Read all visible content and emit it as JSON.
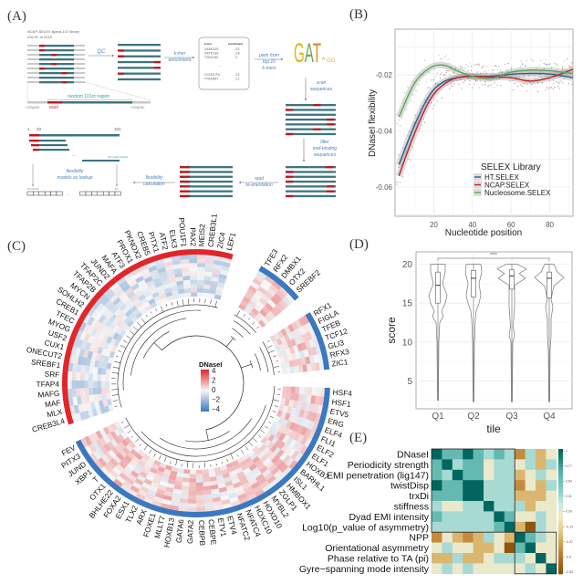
{
  "panels": {
    "a": "(A)",
    "b": "(B)",
    "c": "(C)",
    "d": "(D)",
    "e": "(E)"
  },
  "panel_a": {
    "caption_line1": "NCAP-SELEX ligand-147 library",
    "caption_line2": "Zhu et. al 2018",
    "qc": "QC",
    "kmer_step": [
      "k-mer",
      "enrichment"
    ],
    "kmer_table": {
      "headers": [
        "k-mer",
        "enrichment"
      ],
      "rows": [
        [
          "GATACGG",
          "3.2"
        ],
        [
          "GATTCGG",
          "2.8"
        ],
        [
          "TGGCGAT",
          "3"
        ],
        [
          "...",
          ""
        ],
        [
          "CGTATCTG",
          "2.3"
        ],
        [
          "TTCATATT",
          "1.1"
        ]
      ]
    },
    "pwm_step": [
      "pwm from",
      "top 10",
      "k-mers"
    ],
    "logo": "GAT",
    "scan_step": [
      "scan",
      "sequences"
    ],
    "filter_step": [
      "filter",
      "end-binding",
      "sequences"
    ],
    "reorient_step": [
      "read",
      "re-orientation"
    ],
    "flex_calc_step": [
      "flexibility",
      "calculation"
    ],
    "random_region": "random 101nt region",
    "adapter_left": "Adapter",
    "motif": "Motif",
    "adapter_right": "Adapter",
    "pos_1": "1",
    "pos_10": "10",
    "pos_101": "101",
    "ellipsis": "...",
    "window_label": "(N-n+1)th window",
    "lookup_step": [
      "flexibility",
      "models as lookup"
    ],
    "f_labels": "F1 F2 F3",
    "fn_label": "Fn",
    "colors": {
      "teal": "#3d7480",
      "red": "#c0171c",
      "gray": "#c8c8c8"
    }
  },
  "chart_data": [
    {
      "id": "B",
      "type": "line",
      "xlabel": "Nucleotide position",
      "ylabel": "DNaseI flexibility",
      "xlim": [
        0,
        92
      ],
      "ylim": [
        -0.0704,
        -0.0037
      ],
      "xticks": [
        "20",
        "40",
        "60",
        "80"
      ],
      "xtick_values": [
        20,
        40,
        60,
        80
      ],
      "yticks": [
        "-0.02",
        "-0.04",
        "-0.06"
      ],
      "ytick_values": [
        -0.02,
        -0.04,
        -0.06
      ],
      "grid": true,
      "legend": {
        "title": "SELEX Library",
        "placement": "bottom-right"
      },
      "series": [
        {
          "name": "HT.SELEX",
          "color": "#2f5f8f",
          "x": [
            2,
            10,
            18,
            25,
            32,
            40,
            50,
            60,
            70,
            80,
            92
          ],
          "y": [
            -0.052,
            -0.038,
            -0.027,
            -0.0225,
            -0.021,
            -0.0205,
            -0.0205,
            -0.0198,
            -0.0195,
            -0.0197,
            -0.021
          ]
        },
        {
          "name": "NCAP.SELEX",
          "color": "#c8202a",
          "x": [
            2,
            10,
            18,
            25,
            32,
            40,
            50,
            60,
            70,
            80,
            92
          ],
          "y": [
            -0.056,
            -0.041,
            -0.029,
            -0.0235,
            -0.021,
            -0.0205,
            -0.0207,
            -0.021,
            -0.0222,
            -0.021,
            -0.018
          ]
        },
        {
          "name": "Nucleosome.SELEX",
          "color": "#5aa55a",
          "x": [
            2,
            10,
            18,
            25,
            32,
            40,
            50,
            60,
            70,
            80,
            92
          ],
          "y": [
            -0.035,
            -0.023,
            -0.0175,
            -0.0165,
            -0.0185,
            -0.0205,
            -0.0212,
            -0.019,
            -0.0183,
            -0.0185,
            -0.0195
          ]
        }
      ]
    },
    {
      "id": "D",
      "type": "violin",
      "xlabel": "tile",
      "ylabel": "score",
      "categories": [
        "Q1",
        "Q2",
        "Q3",
        "Q4"
      ],
      "ylim": [
        1.4,
        21.6
      ],
      "yticks": [
        "5",
        "10",
        "15",
        "20"
      ],
      "ytick_values": [
        5,
        10,
        15,
        20
      ],
      "grid": true,
      "significance": {
        "from": "Q1",
        "to": "Q4",
        "label": "****"
      },
      "boxes": [
        {
          "min": 2.5,
          "q1": 15.0,
          "median": 17.3,
          "q3": 19.0,
          "max": 20
        },
        {
          "min": 2.3,
          "q1": 15.8,
          "median": 18.2,
          "q3": 19.2,
          "max": 20
        },
        {
          "min": 2.3,
          "q1": 16.8,
          "median": 18.5,
          "q3": 19.3,
          "max": 20
        },
        {
          "min": 2.3,
          "q1": 15.7,
          "median": 18.2,
          "q3": 19.0,
          "max": 20
        }
      ]
    },
    {
      "id": "E",
      "type": "heatmap",
      "rows": [
        "DNaseI",
        "Periodicity strength",
        "EMI penetration (lig147)",
        "twistDisp",
        "trxDi",
        "stiffness",
        "Dyad EMI intensity",
        "Log10(p_value of asymmetry)",
        "NPP",
        "Orientational asymmetry",
        "Phase relative to TA (pi)",
        "Gyre−spanning mode intensity"
      ],
      "colorbar_ticks": [
        "1",
        "0.77",
        "0.54",
        "0.31",
        "0.09",
        "-0.14",
        "-0.37",
        "-0.6",
        "-0.83"
      ],
      "range": [
        -0.83,
        1
      ],
      "clusters": [
        [
          0,
          7
        ],
        [
          8,
          11
        ]
      ],
      "values": [
        [
          1,
          0.6,
          0.6,
          1,
          0.6,
          0.3,
          0.6,
          0.3,
          -0.5,
          0.3,
          -0.3,
          0.05
        ],
        [
          0.6,
          1,
          0.3,
          0.6,
          0.6,
          0.05,
          0.3,
          0.3,
          0.05,
          0.3,
          -0.3,
          0.3
        ],
        [
          0.6,
          0.3,
          1,
          0.6,
          0.6,
          0.05,
          0.3,
          0.3,
          -0.3,
          0.05,
          0.3,
          0.05
        ],
        [
          1,
          0.6,
          0.6,
          1,
          1,
          0.3,
          0.3,
          0.3,
          -0.5,
          0.05,
          -0.3,
          0.3
        ],
        [
          0.6,
          0.6,
          0.6,
          1,
          1,
          0.3,
          0.3,
          0.3,
          -0.3,
          -0.3,
          -0.3,
          0.05
        ],
        [
          0.3,
          0.05,
          0.05,
          0.3,
          0.3,
          1,
          0.3,
          0.3,
          0.3,
          -0.3,
          0.05,
          0.05
        ],
        [
          0.6,
          0.3,
          0.3,
          0.3,
          0.3,
          0.3,
          1,
          0.6,
          0.05,
          0.05,
          0.3,
          0.05
        ],
        [
          0.3,
          0.3,
          0.3,
          0.3,
          0.3,
          0.3,
          0.6,
          1,
          -0.3,
          -0.8,
          0.3,
          0.05
        ],
        [
          -0.5,
          0.05,
          -0.3,
          -0.5,
          -0.3,
          0.3,
          0.05,
          -0.3,
          1,
          0.6,
          0.3,
          0.05
        ],
        [
          0.05,
          0.3,
          0.05,
          0.05,
          -0.3,
          -0.3,
          0.05,
          -0.8,
          0.6,
          1,
          0.05,
          0.05
        ],
        [
          -0.3,
          -0.3,
          0.3,
          -0.3,
          -0.3,
          0.05,
          0.3,
          0.3,
          0.3,
          0.05,
          1,
          0.05
        ],
        [
          0.05,
          0.3,
          0.05,
          0.3,
          0.05,
          0.05,
          0.05,
          0.05,
          0.05,
          0.3,
          0.05,
          1
        ]
      ]
    }
  ],
  "panel_c": {
    "legend_title": "DNaseI",
    "legend_ticks": [
      "4",
      "2",
      "0",
      "−2",
      "−4"
    ],
    "colors": {
      "high": "#e0262b",
      "low": "#3a78c0"
    },
    "clusters": [
      {
        "ring": "red",
        "labels": [
          "CREB3L4",
          "MLX",
          "MAF",
          "MAFG",
          "TFAP4",
          "SRF",
          "SREBF1",
          "ONECUT2",
          "CUX1",
          "USF2",
          "MYOG",
          "TFEC",
          "CREB1",
          "SOHLH2",
          "MYCN",
          "TFAP2B",
          "TFAP2C",
          "JUND2",
          "MAFA",
          "ATF3",
          "PROX1",
          "PKNOX2",
          "CREB5",
          "PITX1",
          "ATF2",
          "ELK3",
          "POU1F1",
          "PAX2",
          "MEIS2",
          "CREB3L1",
          "ZIC4",
          "LEF1"
        ]
      },
      {
        "ring": "blue",
        "labels": [
          "TFE3",
          "RFX2",
          "DMBX1",
          "OTX2",
          "SREBF2"
        ]
      },
      {
        "ring": "blue",
        "labels": [
          "RFX1",
          "FIGLA",
          "TFEB",
          "TCF12",
          "GLI3",
          "RFX3",
          "ZIC1"
        ]
      },
      {
        "ring": "blue",
        "labels": [
          "HSF4",
          "HSF1",
          "ETV5",
          "ERG",
          "ELF4",
          "FLI1",
          "ELF2",
          "ELF1",
          "HOXB7",
          "BARHL1",
          "ISL1",
          "HMBOX1",
          "ZGLP1",
          "MYBL2",
          "HOXD10",
          "HOXC10",
          "NFATC4",
          "NFATC2",
          "ETV4",
          "ETV1",
          "CEBPE",
          "CEBPB",
          "GATA2",
          "GATA6",
          "HOXB13",
          "MLLT7",
          "FOXE1",
          "ARX",
          "TLX2",
          "ESX1",
          "FOXA2",
          "BHLHE22",
          "OTX1",
          "T",
          "XBP1",
          "JUND",
          "PITX3",
          "FEV"
        ]
      }
    ]
  }
}
